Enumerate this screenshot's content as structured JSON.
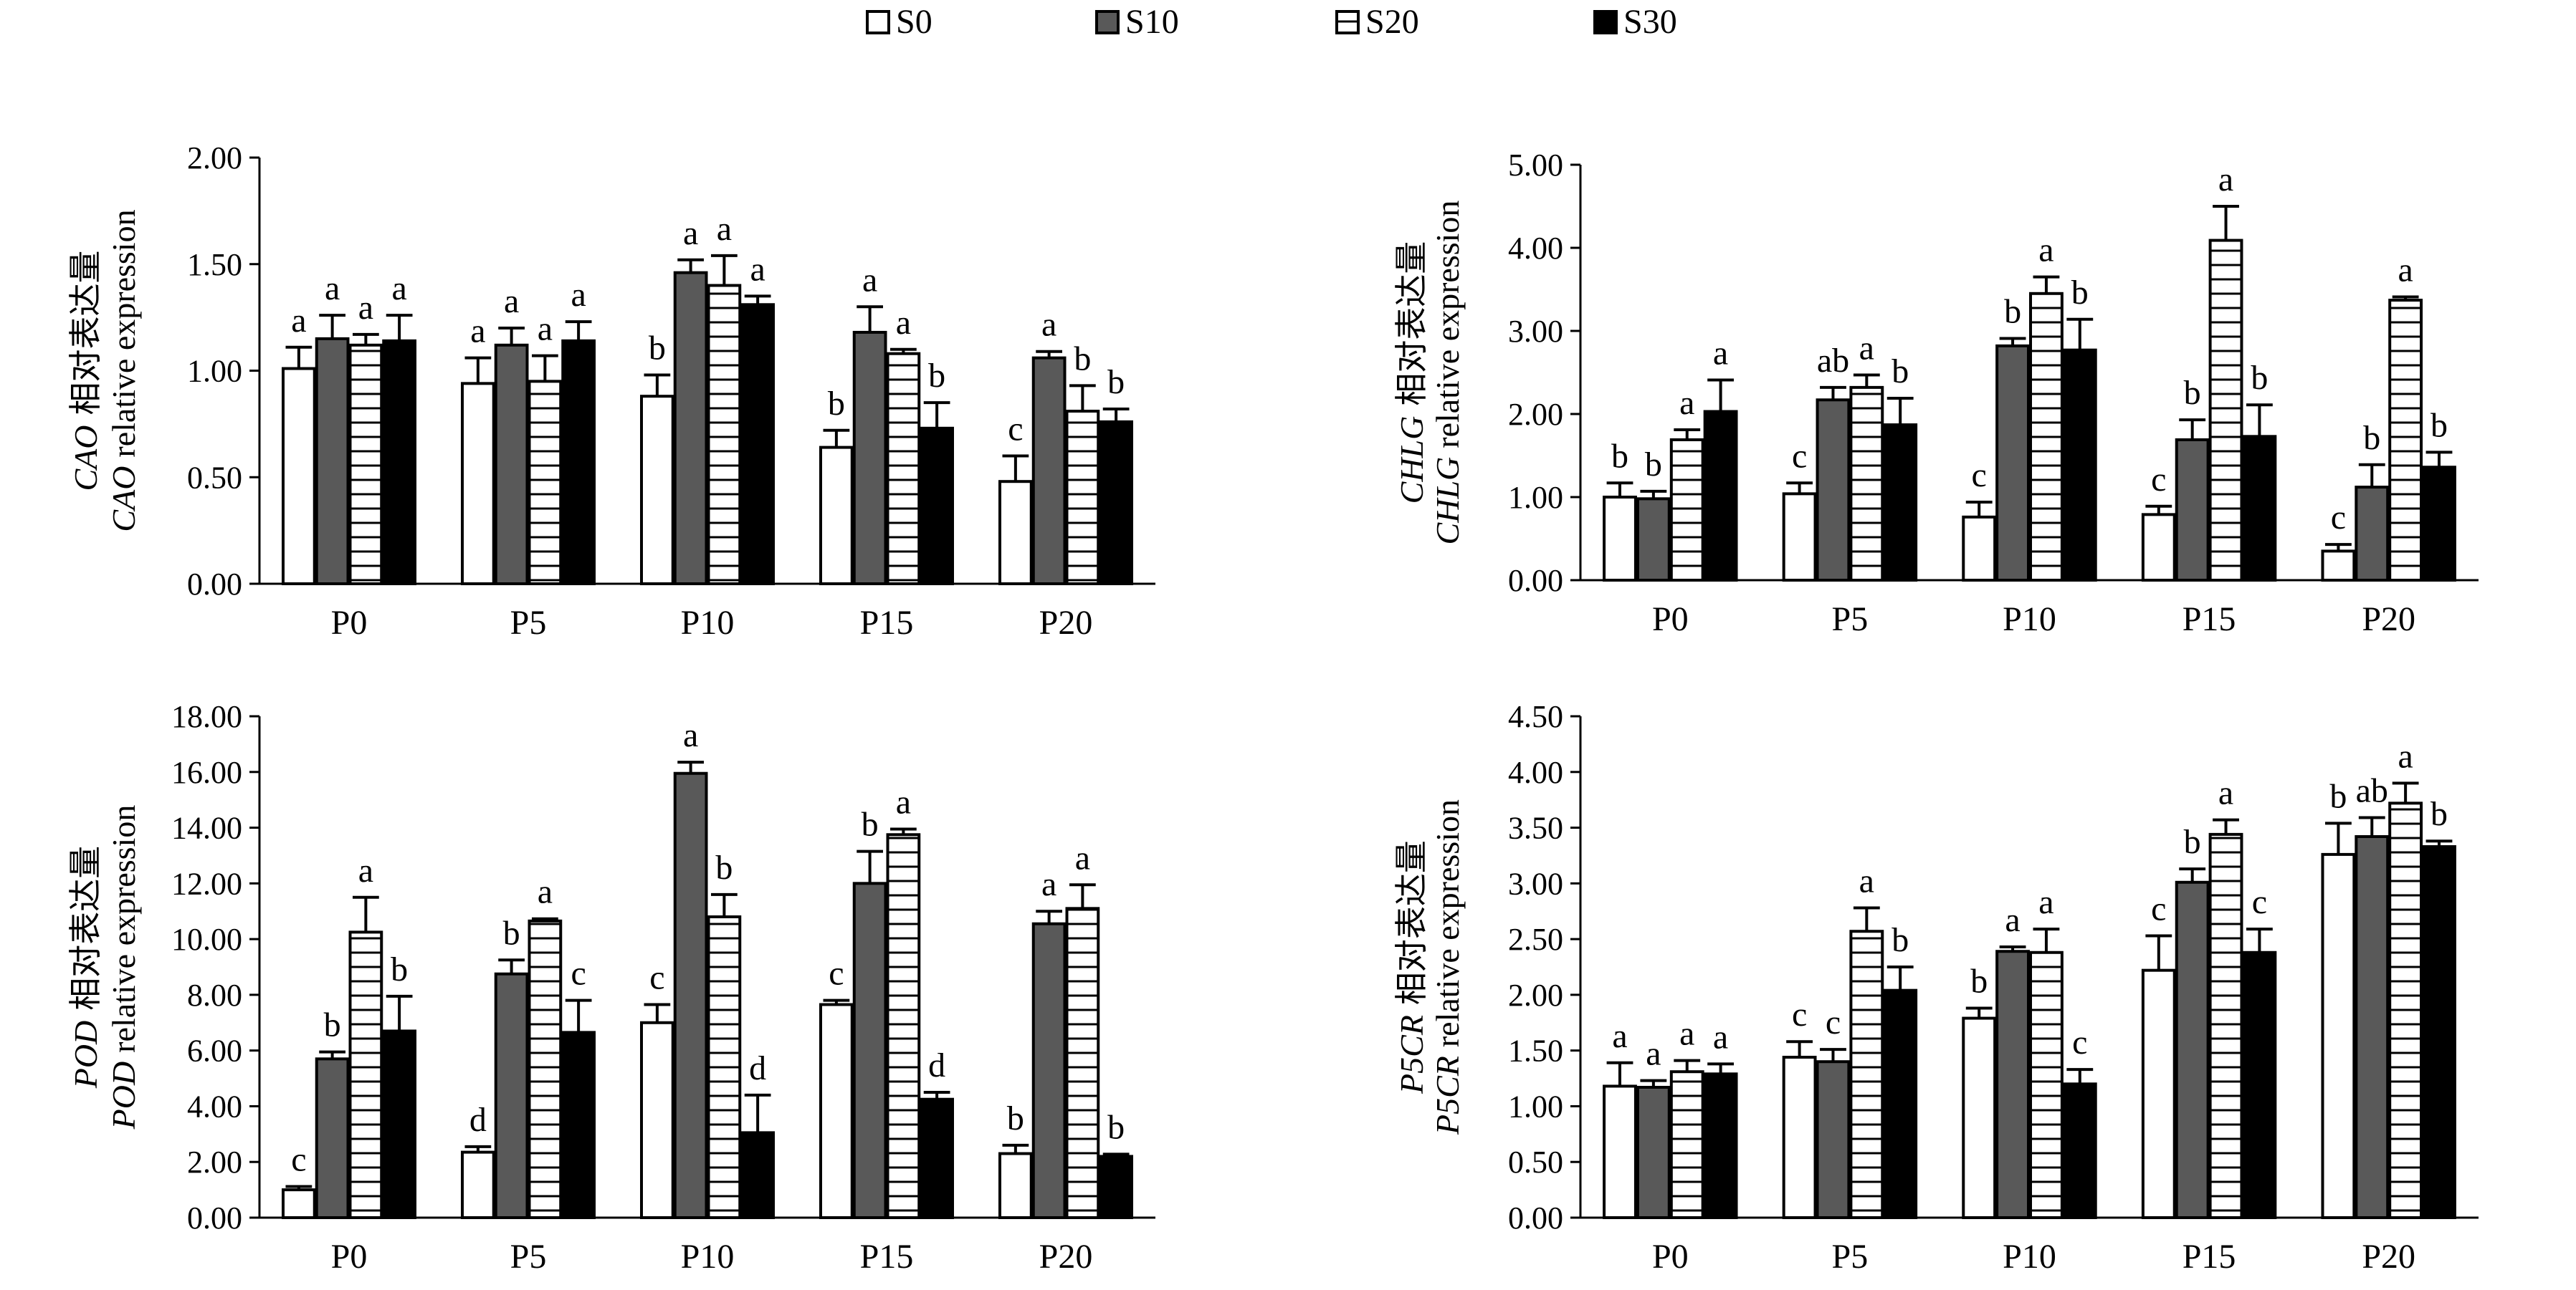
{
  "legend": [
    {
      "name": "S0",
      "fill": "#ffffff",
      "pattern": "none"
    },
    {
      "name": "S10",
      "fill": "#595959",
      "pattern": "none"
    },
    {
      "name": "S20",
      "fill": "#ffffff",
      "pattern": "horizontal-lines"
    },
    {
      "name": "S30",
      "fill": "#000000",
      "pattern": "none"
    }
  ],
  "chart_data": [
    {
      "type": "bar",
      "panel": "top-left",
      "gene": "CAO",
      "ylabel_cn": "相对表达量",
      "ylabel_en": "relative expression",
      "categories": [
        "P0",
        "P5",
        "P10",
        "P15",
        "P20"
      ],
      "ylim": [
        0,
        2.0
      ],
      "yticks": [
        "0.00",
        "0.50",
        "1.00",
        "1.50",
        "2.00"
      ],
      "series": [
        {
          "name": "S0",
          "values": [
            1.01,
            0.94,
            0.88,
            0.64,
            0.48
          ],
          "errors": [
            0.1,
            0.12,
            0.1,
            0.08,
            0.12
          ],
          "letters": [
            "a",
            "a",
            "b",
            "b",
            "c"
          ]
        },
        {
          "name": "S10",
          "values": [
            1.15,
            1.12,
            1.46,
            1.18,
            1.06
          ],
          "errors": [
            0.11,
            0.08,
            0.06,
            0.12,
            0.03
          ],
          "letters": [
            "a",
            "a",
            "a",
            "a",
            "a"
          ]
        },
        {
          "name": "S20",
          "values": [
            1.12,
            0.95,
            1.4,
            1.08,
            0.81
          ],
          "errors": [
            0.05,
            0.12,
            0.14,
            0.02,
            0.12
          ],
          "letters": [
            "a",
            "a",
            "a",
            "a",
            "b"
          ]
        },
        {
          "name": "S30",
          "values": [
            1.14,
            1.14,
            1.31,
            0.73,
            0.76
          ],
          "errors": [
            0.12,
            0.09,
            0.04,
            0.12,
            0.06
          ],
          "letters": [
            "a",
            "a",
            "a",
            "b",
            "b"
          ]
        }
      ]
    },
    {
      "type": "bar",
      "panel": "top-right",
      "gene": "CHLG",
      "ylabel_cn": "相对表达量",
      "ylabel_en": "relative expression",
      "categories": [
        "P0",
        "P5",
        "P10",
        "P15",
        "P20"
      ],
      "ylim": [
        0,
        5.0
      ],
      "yticks": [
        "0.00",
        "1.00",
        "2.00",
        "3.00",
        "4.00",
        "5.00"
      ],
      "series": [
        {
          "name": "S0",
          "values": [
            1.0,
            1.04,
            0.76,
            0.79,
            0.35
          ],
          "errors": [
            0.17,
            0.13,
            0.18,
            0.1,
            0.08
          ],
          "letters": [
            "b",
            "c",
            "c",
            "c",
            "c"
          ]
        },
        {
          "name": "S10",
          "values": [
            0.98,
            2.17,
            2.82,
            1.69,
            1.12
          ],
          "errors": [
            0.09,
            0.15,
            0.09,
            0.24,
            0.27
          ],
          "letters": [
            "b",
            "ab",
            "b",
            "b",
            "b"
          ]
        },
        {
          "name": "S20",
          "values": [
            1.69,
            2.32,
            3.45,
            4.09,
            3.37
          ],
          "errors": [
            0.12,
            0.15,
            0.2,
            0.41,
            0.04
          ],
          "letters": [
            "a",
            "a",
            "a",
            "a",
            "a"
          ]
        },
        {
          "name": "S30",
          "values": [
            2.03,
            1.87,
            2.77,
            1.73,
            1.36
          ],
          "errors": [
            0.38,
            0.32,
            0.37,
            0.38,
            0.18
          ],
          "letters": [
            "a",
            "b",
            "b",
            "b",
            "b"
          ]
        }
      ]
    },
    {
      "type": "bar",
      "panel": "bottom-left",
      "gene": "POD",
      "ylabel_cn": "相对表达量",
      "ylabel_en": "relative expression",
      "categories": [
        "P0",
        "P5",
        "P10",
        "P15",
        "P20"
      ],
      "ylim": [
        0,
        18.0
      ],
      "yticks": [
        "0.00",
        "2.00",
        "4.00",
        "6.00",
        "8.00",
        "10.00",
        "12.00",
        "14.00",
        "16.00",
        "18.00"
      ],
      "series": [
        {
          "name": "S0",
          "values": [
            1.0,
            2.35,
            7.0,
            7.65,
            2.3
          ],
          "errors": [
            0.12,
            0.2,
            0.65,
            0.15,
            0.3
          ],
          "letters": [
            "c",
            "d",
            "c",
            "c",
            "b"
          ]
        },
        {
          "name": "S10",
          "values": [
            5.7,
            8.75,
            15.95,
            12.0,
            10.55
          ],
          "errors": [
            0.25,
            0.5,
            0.4,
            1.15,
            0.45
          ],
          "letters": [
            "b",
            "b",
            "a",
            "b",
            "a"
          ]
        },
        {
          "name": "S20",
          "values": [
            10.25,
            10.65,
            10.8,
            13.75,
            11.1
          ],
          "errors": [
            1.25,
            0.08,
            0.8,
            0.2,
            0.85
          ],
          "letters": [
            "a",
            "a",
            "b",
            "a",
            "a"
          ]
        },
        {
          "name": "S30",
          "values": [
            6.7,
            6.65,
            3.05,
            4.25,
            2.2
          ],
          "errors": [
            1.25,
            1.15,
            1.35,
            0.25,
            0.08
          ],
          "letters": [
            "b",
            "c",
            "d",
            "d",
            "b"
          ]
        }
      ]
    },
    {
      "type": "bar",
      "panel": "bottom-right",
      "gene": "P5CR",
      "ylabel_cn": "相对表达量",
      "ylabel_en": "relative expression",
      "categories": [
        "P0",
        "P5",
        "P10",
        "P15",
        "P20"
      ],
      "ylim": [
        0,
        4.5
      ],
      "yticks": [
        "0.00",
        "0.50",
        "1.00",
        "1.50",
        "2.00",
        "2.50",
        "3.00",
        "3.50",
        "4.00",
        "4.50"
      ],
      "series": [
        {
          "name": "S0",
          "values": [
            1.18,
            1.44,
            1.79,
            2.22,
            3.26
          ],
          "errors": [
            0.21,
            0.14,
            0.09,
            0.31,
            0.28
          ],
          "letters": [
            "a",
            "c",
            "b",
            "c",
            "b"
          ]
        },
        {
          "name": "S10",
          "values": [
            1.17,
            1.4,
            2.39,
            3.01,
            3.42
          ],
          "errors": [
            0.06,
            0.11,
            0.04,
            0.12,
            0.17
          ],
          "letters": [
            "a",
            "c",
            "a",
            "b",
            "ab"
          ]
        },
        {
          "name": "S20",
          "values": [
            1.31,
            2.57,
            2.38,
            3.44,
            3.72
          ],
          "errors": [
            0.1,
            0.21,
            0.21,
            0.13,
            0.18
          ],
          "letters": [
            "a",
            "a",
            "a",
            "a",
            "a"
          ]
        },
        {
          "name": "S30",
          "values": [
            1.29,
            2.04,
            1.2,
            2.38,
            3.33
          ],
          "errors": [
            0.09,
            0.21,
            0.13,
            0.21,
            0.05
          ],
          "letters": [
            "a",
            "b",
            "c",
            "c",
            "b"
          ]
        }
      ]
    }
  ]
}
